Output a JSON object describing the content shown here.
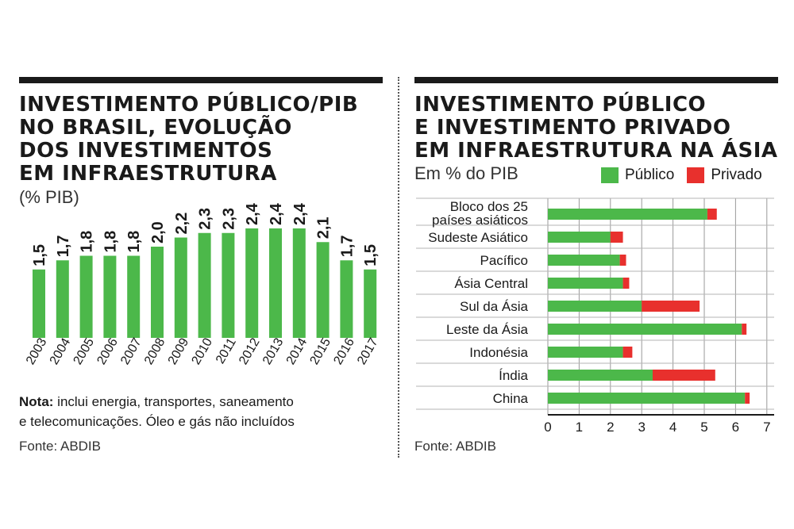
{
  "left": {
    "title_lines": [
      "INVESTIMENTO PÚBLICO/PIB",
      "NO BRASIL, EVOLUÇÃO",
      "DOS INVESTIMENTOS",
      "EM INFRAESTRUTURA"
    ],
    "subtitle": "(% PIB)",
    "note_label": "Nota:",
    "note_text_1": " inclui energia, transportes, saneamento",
    "note_text_2": "e telecomunicações. Óleo e gás não incluídos",
    "source": "Fonte: ABDIB"
  },
  "right": {
    "title_lines": [
      "INVESTIMENTO PÚBLICO",
      "E INVESTIMENTO PRIVADO",
      "EM INFRAESTRUTURA NA ÁSIA"
    ],
    "subtitle": "Em % do PIB",
    "source": "Fonte: ABDIB"
  },
  "colors": {
    "public": "#4cb84a",
    "private": "#e8302d",
    "text": "#1a1a1a"
  },
  "chart_data": [
    {
      "type": "bar",
      "title": "INVESTIMENTO PÚBLICO/PIB NO BRASIL, EVOLUÇÃO DOS INVESTIMENTOS EM INFRAESTRUTURA",
      "ylabel": "(% PIB)",
      "categories": [
        "2003",
        "2004",
        "2005",
        "2006",
        "2007",
        "2008",
        "2009",
        "2010",
        "2011",
        "2012",
        "2013",
        "2014",
        "2015",
        "2016",
        "2017"
      ],
      "values": [
        1.5,
        1.7,
        1.8,
        1.8,
        1.8,
        2.0,
        2.2,
        2.3,
        2.3,
        2.4,
        2.4,
        2.4,
        2.1,
        1.7,
        1.5
      ],
      "labels": [
        "1,5",
        "1,7",
        "1,8",
        "1,8",
        "1,8",
        "2,0",
        "2,2",
        "2,3",
        "2,3",
        "2,4",
        "2,4",
        "2,4",
        "2,1",
        "1,7",
        "1,5"
      ],
      "grid": false
    },
    {
      "type": "bar",
      "orientation": "horizontal",
      "stacked": true,
      "title": "INVESTIMENTO PÚBLICO E INVESTIMENTO PRIVADO EM INFRAESTRUTURA NA ÁSIA",
      "subtitle": "Em % do PIB",
      "categories": [
        [
          "Bloco dos 25",
          "países asiáticos"
        ],
        [
          "Sudeste Asiático"
        ],
        [
          "Pacífico"
        ],
        [
          "Ásia Central"
        ],
        [
          "Sul da Ásia"
        ],
        [
          "Leste da Ásia"
        ],
        [
          "Indonésia"
        ],
        [
          "Índia"
        ],
        [
          "China"
        ]
      ],
      "series": [
        {
          "name": "Público",
          "values": [
            5.1,
            2.0,
            2.3,
            2.4,
            3.0,
            6.2,
            2.4,
            3.35,
            6.3
          ]
        },
        {
          "name": "Privado",
          "values": [
            0.3,
            0.4,
            0.2,
            0.2,
            1.85,
            0.15,
            0.3,
            2.0,
            0.15
          ]
        }
      ],
      "xlim": [
        0,
        7
      ],
      "xticks": [
        "0",
        "1",
        "2",
        "3",
        "4",
        "5",
        "6",
        "7"
      ],
      "grid": true,
      "legend": "top-right"
    }
  ]
}
